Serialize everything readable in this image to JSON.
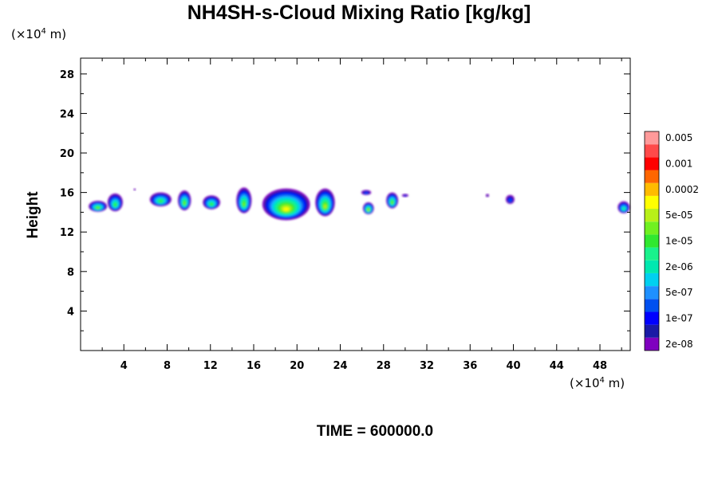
{
  "chart_data": {
    "type": "heatmap",
    "title": "NH4SH-s-Cloud Mixing Ratio [kg/kg]",
    "ylabel": "Height",
    "xlabel": "",
    "x_unit": {
      "prefix": "(×10",
      "exp": "4",
      "suffix": " m)"
    },
    "y_unit": {
      "prefix": "(×10",
      "exp": "4",
      "suffix": " m)"
    },
    "xlim": [
      0,
      50.8
    ],
    "ylim": [
      0,
      29.6
    ],
    "x_ticks": [
      4,
      8,
      12,
      16,
      20,
      24,
      28,
      32,
      36,
      40,
      44,
      48
    ],
    "y_ticks": [
      4,
      8,
      12,
      16,
      20,
      24,
      28
    ],
    "colorbar": {
      "colors": [
        "#7f00bf",
        "#1a1aa6",
        "#0000ff",
        "#0050f0",
        "#1e90ff",
        "#00d0f0",
        "#00e8b0",
        "#19f28c",
        "#30e830",
        "#70f020",
        "#b8f018",
        "#ffff00",
        "#ffbb00",
        "#ff6600",
        "#ff0000",
        "#ff4a4a",
        "#ff9a9a"
      ],
      "labels": [
        "2e-08",
        "1e-07",
        "5e-07",
        "2e-06",
        "1e-05",
        "5e-05",
        "0.0002",
        "0.001",
        "0.005"
      ]
    },
    "cloud_cells": [
      {
        "x": 1.6,
        "z": 14.6,
        "w": 1.7,
        "h": 1.1,
        "level": 9
      },
      {
        "x": 3.2,
        "z": 15.0,
        "w": 1.4,
        "h": 1.8,
        "level": 8
      },
      {
        "x": 7.4,
        "z": 15.3,
        "w": 2.0,
        "h": 1.4,
        "level": 8
      },
      {
        "x": 9.6,
        "z": 15.2,
        "w": 1.2,
        "h": 2.0,
        "level": 9
      },
      {
        "x": 12.1,
        "z": 15.0,
        "w": 1.6,
        "h": 1.4,
        "level": 8
      },
      {
        "x": 15.1,
        "z": 15.2,
        "w": 1.4,
        "h": 2.6,
        "level": 9
      },
      {
        "x": 19.0,
        "z": 14.8,
        "w": 4.4,
        "h": 3.2,
        "level": 11
      },
      {
        "x": 22.6,
        "z": 15.0,
        "w": 1.8,
        "h": 2.8,
        "level": 10
      },
      {
        "x": 26.6,
        "z": 14.4,
        "w": 1.0,
        "h": 1.2,
        "level": 10
      },
      {
        "x": 26.4,
        "z": 16.0,
        "w": 0.9,
        "h": 0.5,
        "level": 3
      },
      {
        "x": 28.8,
        "z": 15.2,
        "w": 1.1,
        "h": 1.6,
        "level": 9
      },
      {
        "x": 30.0,
        "z": 15.7,
        "w": 0.6,
        "h": 0.3,
        "level": 2
      },
      {
        "x": 37.6,
        "z": 15.7,
        "w": 0.3,
        "h": 0.3,
        "level": 1
      },
      {
        "x": 39.7,
        "z": 15.3,
        "w": 0.8,
        "h": 0.9,
        "level": 3
      },
      {
        "x": 50.2,
        "z": 14.5,
        "w": 1.1,
        "h": 1.2,
        "level": 7
      },
      {
        "x": 5.0,
        "z": 16.3,
        "w": 0.2,
        "h": 0.2,
        "level": 1
      }
    ],
    "grid": false,
    "legend": "right"
  },
  "time_label": "TIME = 600000.0"
}
